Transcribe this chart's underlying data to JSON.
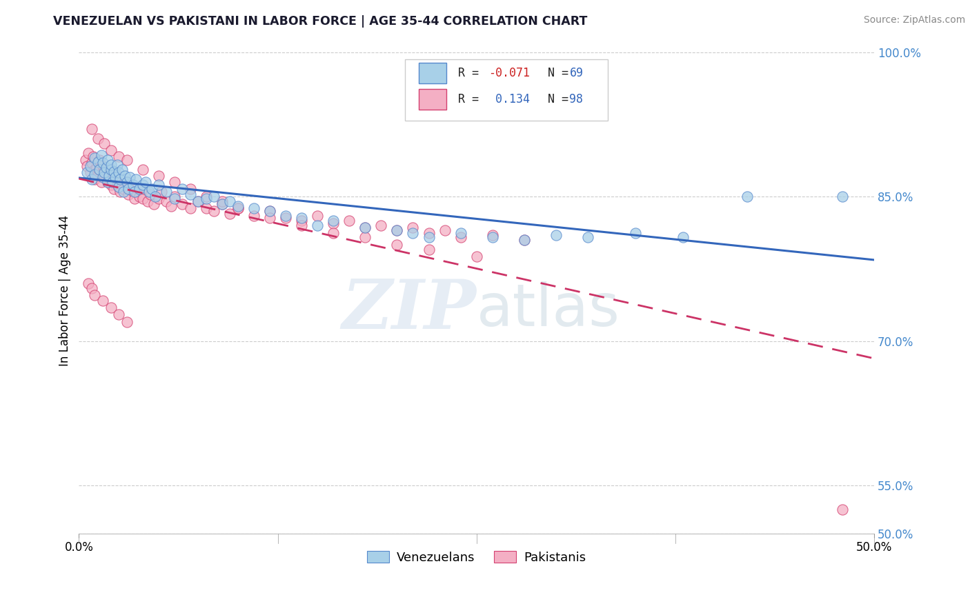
{
  "title": "VENEZUELAN VS PAKISTANI IN LABOR FORCE | AGE 35-44 CORRELATION CHART",
  "source": "Source: ZipAtlas.com",
  "ylabel": "In Labor Force | Age 35-44",
  "xlim": [
    0.0,
    0.5
  ],
  "ylim": [
    0.5,
    1.005
  ],
  "ytick_labels": [
    "50.0%",
    "55.0%",
    "70.0%",
    "85.0%",
    "100.0%"
  ],
  "ytick_positions": [
    0.5,
    0.55,
    0.7,
    0.85,
    1.0
  ],
  "xtick_labels": [
    "0.0%",
    "50.0%"
  ],
  "xtick_positions": [
    0.0,
    0.5
  ],
  "venezuelan_R": "-0.071",
  "venezuelan_N": "69",
  "pakistani_R": "0.134",
  "pakistani_N": "98",
  "blue_color": "#a8d0e8",
  "pink_color": "#f4afc4",
  "blue_edge_color": "#5588cc",
  "pink_edge_color": "#d44070",
  "blue_line_color": "#3366bb",
  "pink_line_color": "#cc3366",
  "watermark_zip": "ZIP",
  "watermark_atlas": "atlas",
  "legend_label_blue": "Venezuelans",
  "legend_label_pink": "Pakistanis",
  "venezuelan_x": [
    0.005,
    0.007,
    0.008,
    0.01,
    0.01,
    0.012,
    0.013,
    0.014,
    0.015,
    0.015,
    0.016,
    0.017,
    0.018,
    0.018,
    0.019,
    0.02,
    0.02,
    0.021,
    0.022,
    0.023,
    0.024,
    0.025,
    0.025,
    0.026,
    0.027,
    0.028,
    0.029,
    0.03,
    0.031,
    0.032,
    0.034,
    0.035,
    0.036,
    0.038,
    0.04,
    0.042,
    0.044,
    0.046,
    0.048,
    0.05,
    0.055,
    0.06,
    0.065,
    0.07,
    0.075,
    0.08,
    0.085,
    0.09,
    0.095,
    0.1,
    0.11,
    0.12,
    0.13,
    0.14,
    0.15,
    0.16,
    0.18,
    0.2,
    0.21,
    0.22,
    0.24,
    0.26,
    0.28,
    0.3,
    0.32,
    0.35,
    0.38,
    0.42,
    0.48
  ],
  "venezuelan_y": [
    0.875,
    0.882,
    0.868,
    0.89,
    0.873,
    0.886,
    0.878,
    0.893,
    0.87,
    0.885,
    0.875,
    0.88,
    0.865,
    0.888,
    0.872,
    0.878,
    0.883,
    0.865,
    0.876,
    0.87,
    0.883,
    0.86,
    0.875,
    0.868,
    0.878,
    0.855,
    0.872,
    0.865,
    0.858,
    0.87,
    0.862,
    0.855,
    0.868,
    0.858,
    0.862,
    0.865,
    0.855,
    0.858,
    0.85,
    0.862,
    0.855,
    0.848,
    0.858,
    0.852,
    0.845,
    0.848,
    0.85,
    0.842,
    0.845,
    0.84,
    0.838,
    0.835,
    0.83,
    0.828,
    0.82,
    0.825,
    0.818,
    0.815,
    0.812,
    0.808,
    0.812,
    0.808,
    0.805,
    0.81,
    0.808,
    0.812,
    0.808,
    0.85,
    0.85
  ],
  "pakistani_x": [
    0.004,
    0.005,
    0.006,
    0.007,
    0.008,
    0.009,
    0.01,
    0.01,
    0.011,
    0.012,
    0.013,
    0.013,
    0.014,
    0.015,
    0.015,
    0.016,
    0.017,
    0.018,
    0.019,
    0.02,
    0.02,
    0.021,
    0.022,
    0.023,
    0.024,
    0.025,
    0.026,
    0.027,
    0.028,
    0.03,
    0.031,
    0.032,
    0.034,
    0.035,
    0.036,
    0.038,
    0.04,
    0.041,
    0.043,
    0.045,
    0.047,
    0.05,
    0.052,
    0.055,
    0.058,
    0.06,
    0.065,
    0.07,
    0.075,
    0.08,
    0.085,
    0.09,
    0.095,
    0.1,
    0.11,
    0.12,
    0.13,
    0.14,
    0.15,
    0.16,
    0.17,
    0.18,
    0.19,
    0.2,
    0.21,
    0.22,
    0.23,
    0.24,
    0.26,
    0.28,
    0.008,
    0.012,
    0.016,
    0.02,
    0.025,
    0.03,
    0.04,
    0.05,
    0.06,
    0.07,
    0.08,
    0.09,
    0.1,
    0.12,
    0.14,
    0.16,
    0.18,
    0.2,
    0.22,
    0.25,
    0.006,
    0.008,
    0.01,
    0.015,
    0.02,
    0.025,
    0.03,
    0.48
  ],
  "pakistani_y": [
    0.888,
    0.882,
    0.895,
    0.875,
    0.885,
    0.892,
    0.878,
    0.868,
    0.88,
    0.872,
    0.888,
    0.878,
    0.865,
    0.882,
    0.875,
    0.87,
    0.878,
    0.865,
    0.872,
    0.878,
    0.862,
    0.87,
    0.858,
    0.875,
    0.865,
    0.86,
    0.855,
    0.862,
    0.858,
    0.865,
    0.852,
    0.858,
    0.855,
    0.848,
    0.855,
    0.85,
    0.848,
    0.858,
    0.845,
    0.852,
    0.842,
    0.848,
    0.855,
    0.845,
    0.84,
    0.85,
    0.842,
    0.838,
    0.845,
    0.838,
    0.835,
    0.842,
    0.832,
    0.838,
    0.83,
    0.835,
    0.828,
    0.825,
    0.83,
    0.822,
    0.825,
    0.818,
    0.82,
    0.815,
    0.818,
    0.812,
    0.815,
    0.808,
    0.81,
    0.805,
    0.92,
    0.91,
    0.905,
    0.898,
    0.892,
    0.888,
    0.878,
    0.872,
    0.865,
    0.858,
    0.85,
    0.845,
    0.838,
    0.828,
    0.82,
    0.812,
    0.808,
    0.8,
    0.795,
    0.788,
    0.76,
    0.755,
    0.748,
    0.742,
    0.735,
    0.728,
    0.72,
    0.525
  ]
}
